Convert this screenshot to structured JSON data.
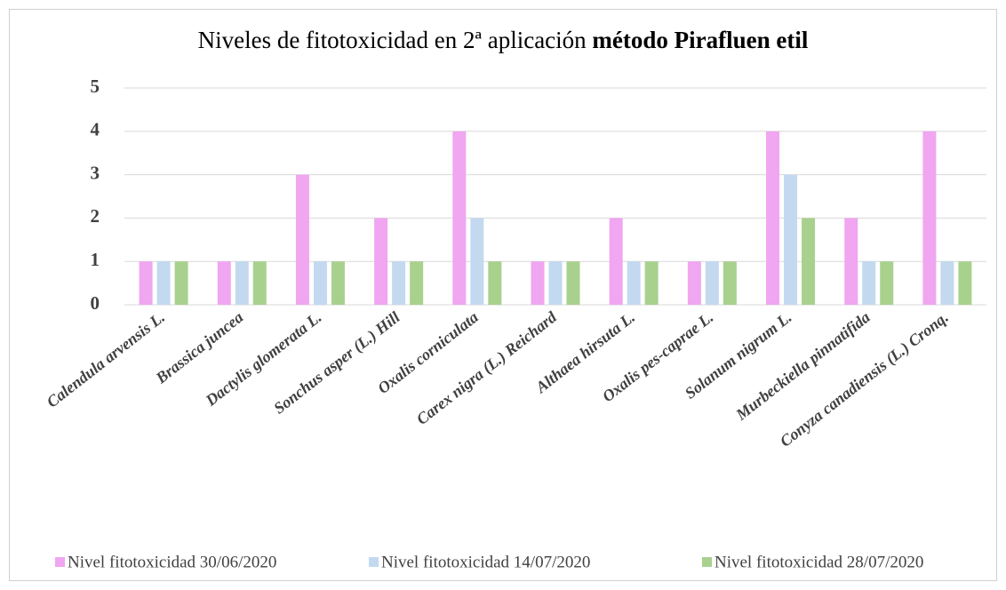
{
  "chart_data": {
    "type": "bar",
    "title": [
      "Niveles de fitotoxicidad en 2ª aplicación",
      "método Pirafluen etil"
    ],
    "categories": [
      "Calendula arvensis L.",
      "Brassica juncea",
      "Dactylis glomerata L.",
      "Sonchus asper (L.) Hill",
      "Oxalis corniculata",
      "Carex nigra (L.) Reichard",
      "Althaea hirsuta L.",
      "Oxalis pes-caprae L.",
      "Solanum nigrum L.",
      "Murbeckiella pinnatifida",
      "Conyza canadiensis (L.) Cronq."
    ],
    "series": [
      {
        "name": "Nivel fitotoxicidad 30/06/2020",
        "color": "#f0a6f0",
        "values": [
          1,
          1,
          3,
          2,
          4,
          1,
          2,
          1,
          4,
          2,
          4
        ]
      },
      {
        "name": "Nivel fitotoxicidad 14/07/2020",
        "color": "#c3d9ef",
        "values": [
          1,
          1,
          1,
          1,
          2,
          1,
          1,
          1,
          3,
          1,
          1
        ]
      },
      {
        "name": "Nivel fitotoxicidad 28/07/2020",
        "color": "#a9d18e",
        "values": [
          1,
          1,
          1,
          1,
          1,
          1,
          1,
          1,
          2,
          1,
          1
        ]
      }
    ],
    "ylim": [
      0,
      5
    ],
    "yticks": [
      0,
      1,
      2,
      3,
      4,
      5
    ],
    "grid": true,
    "legend": "bottom"
  }
}
